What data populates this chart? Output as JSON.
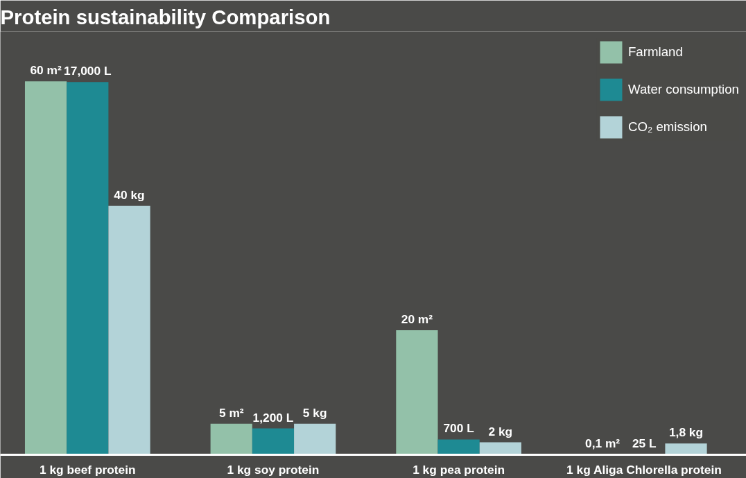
{
  "chart_data": {
    "type": "bar",
    "title": "Protein sustainability Comparison",
    "categories": [
      "1 kg beef protein",
      "1 kg soy protein",
      "1 kg pea protein",
      "1 kg Aliga Chlorella protein"
    ],
    "series": [
      {
        "name": "Farmland",
        "color": "#93c1a9",
        "values": [
          60,
          5,
          20,
          0.1
        ],
        "value_labels": [
          "60 m²",
          "5 m²",
          "20 m²",
          "0,1 m²"
        ]
      },
      {
        "name": "Water consumption",
        "color": "#1e8a93",
        "axis": "y2",
        "values": [
          17000,
          1200,
          700,
          25
        ],
        "value_labels": [
          "17,000 L",
          "1,200 L",
          "700 L",
          "25 L"
        ]
      },
      {
        "name": "CO₂ emission",
        "color": "#b3d3d8",
        "values": [
          40,
          5,
          2,
          1.8
        ],
        "value_labels": [
          "40 kg",
          "5 kg",
          "2 kg",
          "1,8 kg"
        ]
      }
    ],
    "ylim": [
      0,
      68
    ],
    "y2lim": [
      0,
      19300
    ],
    "legend": "top right",
    "grid": false
  }
}
